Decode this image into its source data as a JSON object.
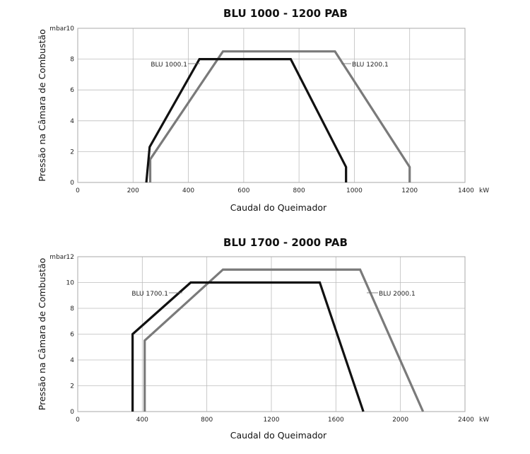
{
  "chart_data": [
    {
      "type": "line",
      "title": "BLU 1000 - 1200 PAB",
      "xlabel": "Caudal do Queimador",
      "ylabel": "Pressão na Câmara de Combustão",
      "x_unit": "kW",
      "y_unit": "mbar",
      "xlim": [
        0,
        1400
      ],
      "ylim": [
        0,
        10
      ],
      "x_ticks": [
        0,
        200,
        400,
        600,
        800,
        1000,
        1200,
        1400
      ],
      "y_ticks": [
        0,
        2,
        4,
        6,
        8,
        10
      ],
      "grid": true,
      "series": [
        {
          "name": "BLU 1000.1",
          "color": "#111111",
          "x": [
            248,
            260,
            440,
            770,
            970,
            970
          ],
          "y": [
            0,
            2.3,
            8,
            8,
            1,
            0
          ]
        },
        {
          "name": "BLU 1200.1",
          "color": "#7a7a7a",
          "x": [
            262,
            262,
            525,
            930,
            1200,
            1200
          ],
          "y": [
            0,
            1.5,
            8.5,
            8.5,
            1,
            0
          ]
        }
      ]
    },
    {
      "type": "line",
      "title": "BLU 1700 - 2000 PAB",
      "xlabel": "Caudal do Queimador",
      "ylabel": "Pressão na Câmara de Combustão",
      "x_unit": "kW",
      "y_unit": "mbar",
      "xlim": [
        0,
        2400
      ],
      "ylim": [
        0,
        12
      ],
      "x_ticks": [
        0,
        400,
        800,
        1200,
        1600,
        2000,
        2400
      ],
      "y_ticks": [
        0,
        2,
        4,
        6,
        8,
        10,
        12
      ],
      "grid": true,
      "series": [
        {
          "name": "BLU 1700.1",
          "color": "#111111",
          "x": [
            340,
            340,
            700,
            1500,
            1770
          ],
          "y": [
            0,
            6,
            10,
            10,
            0
          ]
        },
        {
          "name": "BLU 2000.1",
          "color": "#7a7a7a",
          "x": [
            415,
            415,
            900,
            1750,
            2140
          ],
          "y": [
            0,
            5.5,
            11,
            11,
            0
          ]
        }
      ]
    }
  ]
}
